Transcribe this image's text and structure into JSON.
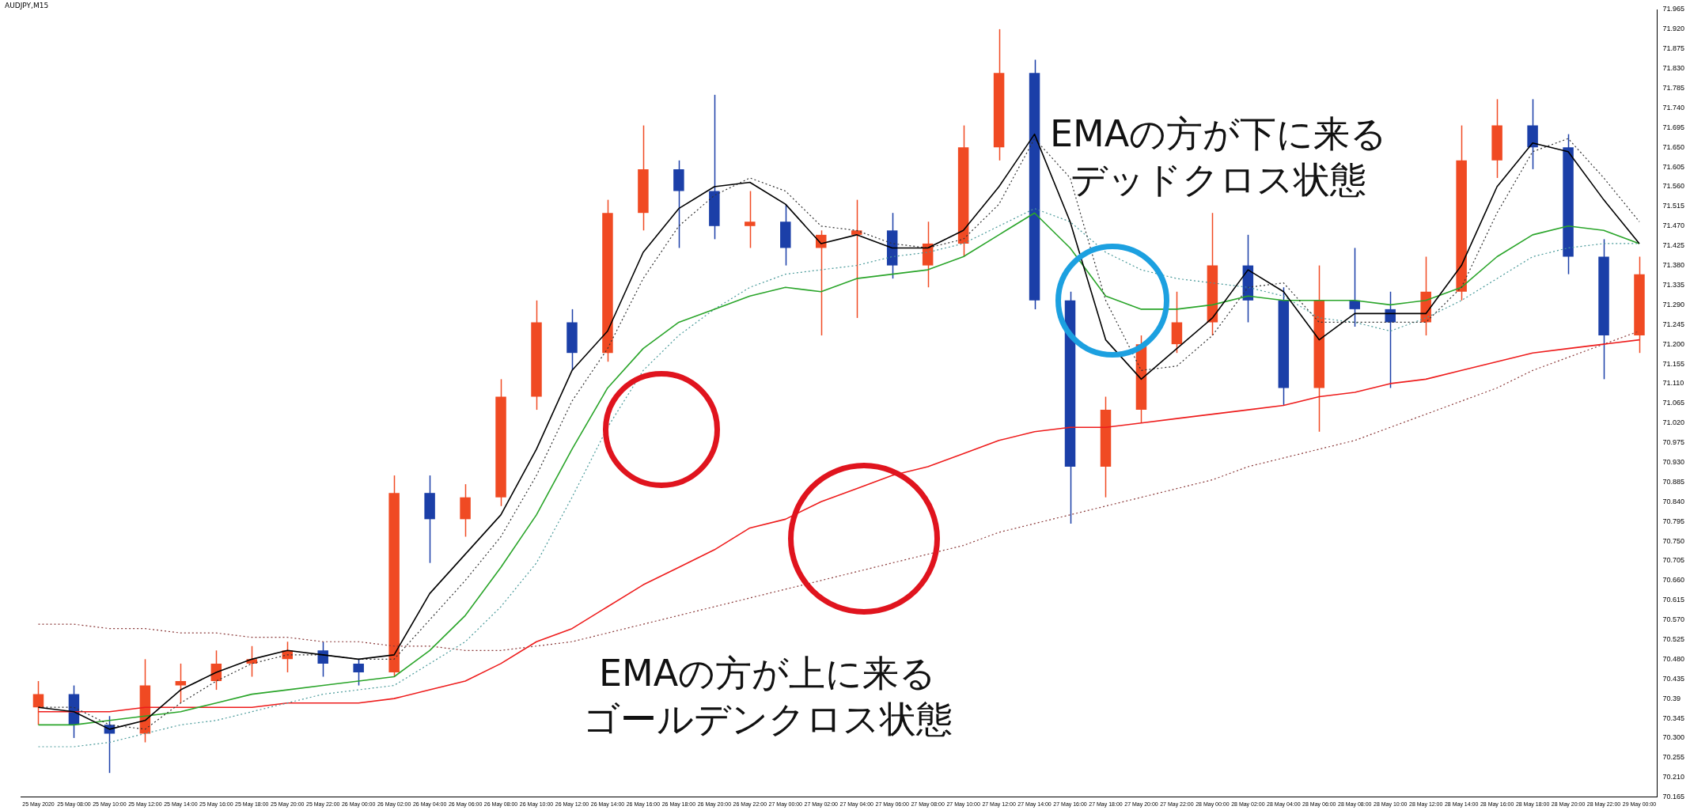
{
  "chart_data": {
    "type": "candlestick",
    "title": "AUDJPY,M15",
    "categories": [
      "25 May 2020",
      "25 May 08:00",
      "25 May 10:00",
      "25 May 12:00",
      "25 May 14:00",
      "25 May 16:00",
      "25 May 18:00",
      "25 May 20:00",
      "25 May 22:00",
      "26 May 00:00",
      "26 May 02:00",
      "26 May 04:00",
      "26 May 06:00",
      "26 May 08:00",
      "26 May 10:00",
      "26 May 12:00",
      "26 May 14:00",
      "26 May 16:00",
      "26 May 18:00",
      "26 May 20:00",
      "26 May 22:00",
      "27 May 00:00",
      "27 May 02:00",
      "27 May 04:00",
      "27 May 06:00",
      "27 May 08:00",
      "27 May 10:00",
      "27 May 12:00",
      "27 May 14:00",
      "27 May 16:00",
      "27 May 18:00",
      "27 May 20:00",
      "27 May 22:00",
      "28 May 00:00",
      "28 May 02:00",
      "28 May 04:00",
      "28 May 06:00",
      "28 May 08:00",
      "28 May 10:00",
      "28 May 12:00",
      "28 May 14:00",
      "28 May 16:00",
      "28 May 18:00",
      "28 May 20:00",
      "28 May 22:00",
      "29 May 00:00"
    ],
    "ohlc": [
      [
        70.37,
        70.43,
        70.33,
        70.4
      ],
      [
        70.4,
        70.42,
        70.3,
        70.33
      ],
      [
        70.33,
        70.35,
        70.22,
        70.31
      ],
      [
        70.31,
        70.48,
        70.29,
        70.42
      ],
      [
        70.42,
        70.47,
        70.38,
        70.43
      ],
      [
        70.43,
        70.5,
        70.41,
        70.47
      ],
      [
        70.47,
        70.51,
        70.44,
        70.48
      ],
      [
        70.48,
        70.52,
        70.45,
        70.5
      ],
      [
        70.5,
        70.52,
        70.44,
        70.47
      ],
      [
        70.47,
        70.48,
        70.42,
        70.45
      ],
      [
        70.45,
        70.9,
        70.44,
        70.86
      ],
      [
        70.86,
        70.9,
        70.7,
        70.8
      ],
      [
        70.8,
        70.88,
        70.76,
        70.85
      ],
      [
        70.85,
        71.12,
        70.83,
        71.08
      ],
      [
        71.08,
        71.3,
        71.05,
        71.25
      ],
      [
        71.25,
        71.28,
        71.14,
        71.18
      ],
      [
        71.18,
        71.53,
        71.16,
        71.5
      ],
      [
        71.5,
        71.7,
        71.46,
        71.6
      ],
      [
        71.6,
        71.62,
        71.42,
        71.55
      ],
      [
        71.55,
        71.77,
        71.44,
        71.47
      ],
      [
        71.47,
        71.55,
        71.42,
        71.48
      ],
      [
        71.48,
        71.52,
        71.38,
        71.42
      ],
      [
        71.42,
        71.46,
        71.22,
        71.45
      ],
      [
        71.45,
        71.53,
        71.26,
        71.46
      ],
      [
        71.46,
        71.5,
        71.35,
        71.38
      ],
      [
        71.38,
        71.48,
        71.33,
        71.43
      ],
      [
        71.43,
        71.7,
        71.4,
        71.65
      ],
      [
        71.65,
        71.92,
        71.62,
        71.82
      ],
      [
        71.82,
        71.85,
        71.28,
        71.3
      ],
      [
        71.3,
        71.32,
        70.79,
        70.92
      ],
      [
        70.92,
        71.08,
        70.85,
        71.05
      ],
      [
        71.05,
        71.22,
        71.02,
        71.2
      ],
      [
        71.2,
        71.32,
        71.18,
        71.25
      ],
      [
        71.25,
        71.5,
        71.22,
        71.38
      ],
      [
        71.38,
        71.45,
        71.25,
        71.3
      ],
      [
        71.3,
        71.33,
        71.06,
        71.1
      ],
      [
        71.1,
        71.38,
        71.0,
        71.3
      ],
      [
        71.3,
        71.42,
        71.24,
        71.28
      ],
      [
        71.28,
        71.32,
        71.1,
        71.25
      ],
      [
        71.25,
        71.4,
        71.22,
        71.32
      ],
      [
        71.32,
        71.7,
        71.3,
        71.62
      ],
      [
        71.62,
        71.76,
        71.58,
        71.7
      ],
      [
        71.7,
        71.76,
        71.6,
        71.65
      ],
      [
        71.65,
        71.68,
        71.36,
        71.4
      ],
      [
        71.4,
        71.44,
        71.12,
        71.22
      ],
      [
        71.22,
        71.4,
        71.18,
        71.36
      ]
    ],
    "colors": [
      "#f04a23",
      "#1b3fa8",
      "#1b3fa8",
      "#f04a23",
      "#f04a23",
      "#f04a23",
      "#f04a23",
      "#f04a23",
      "#1b3fa8",
      "#1b3fa8",
      "#f04a23",
      "#1b3fa8",
      "#f04a23",
      "#f04a23",
      "#f04a23",
      "#1b3fa8",
      "#f04a23",
      "#f04a23",
      "#1b3fa8",
      "#1b3fa8",
      "#f04a23",
      "#1b3fa8",
      "#f04a23",
      "#f04a23",
      "#1b3fa8",
      "#f04a23",
      "#f04a23",
      "#f04a23",
      "#1b3fa8",
      "#1b3fa8",
      "#f04a23",
      "#f04a23",
      "#f04a23",
      "#f04a23",
      "#1b3fa8",
      "#1b3fa8",
      "#f04a23",
      "#1b3fa8",
      "#1b3fa8",
      "#f04a23",
      "#f04a23",
      "#f04a23",
      "#1b3fa8",
      "#1b3fa8",
      "#1b3fa8",
      "#f04a23"
    ],
    "series": [
      {
        "type": "line",
        "color": "#000000",
        "line_style": "solid",
        "values": [
          70.37,
          70.36,
          70.32,
          70.34,
          70.41,
          70.45,
          70.48,
          70.5,
          70.49,
          70.48,
          70.49,
          70.63,
          70.72,
          70.81,
          70.96,
          71.14,
          71.23,
          71.41,
          71.51,
          71.56,
          71.57,
          71.52,
          71.43,
          71.45,
          71.42,
          71.42,
          71.46,
          71.56,
          71.68,
          71.48,
          71.21,
          71.12,
          71.19,
          71.26,
          71.37,
          71.32,
          71.21,
          71.27,
          71.27,
          71.27,
          71.38,
          71.56,
          71.66,
          71.64,
          71.53,
          71.43
        ]
      },
      {
        "type": "line",
        "color": "#333333",
        "line_style": "dotted",
        "values": [
          70.37,
          70.37,
          70.33,
          70.32,
          70.38,
          70.43,
          70.47,
          70.49,
          70.49,
          70.48,
          70.48,
          70.57,
          70.66,
          70.76,
          70.9,
          71.07,
          71.19,
          71.35,
          71.47,
          71.54,
          71.58,
          71.55,
          71.47,
          71.46,
          71.43,
          71.42,
          71.44,
          71.52,
          71.67,
          71.58,
          71.3,
          71.14,
          71.15,
          71.22,
          71.33,
          71.34,
          71.25,
          71.25,
          71.25,
          71.25,
          71.33,
          71.5,
          71.64,
          71.67,
          71.58,
          71.48
        ]
      },
      {
        "type": "line",
        "color": "#2aa52a",
        "line_style": "solid",
        "values": [
          70.33,
          70.33,
          70.34,
          70.35,
          70.36,
          70.38,
          70.4,
          70.41,
          70.42,
          70.43,
          70.44,
          70.5,
          70.58,
          70.69,
          70.81,
          70.96,
          71.1,
          71.19,
          71.25,
          71.28,
          71.31,
          71.33,
          71.32,
          71.35,
          71.36,
          71.37,
          71.4,
          71.45,
          71.5,
          71.42,
          71.31,
          71.28,
          71.28,
          71.29,
          71.31,
          71.3,
          71.3,
          71.3,
          71.29,
          71.3,
          71.33,
          71.4,
          71.45,
          71.47,
          71.46,
          71.43
        ]
      },
      {
        "type": "line",
        "color": "#4a9a9a",
        "line_style": "dotted",
        "values": [
          70.28,
          70.28,
          70.29,
          70.31,
          70.33,
          70.34,
          70.36,
          70.38,
          70.4,
          70.41,
          70.42,
          70.47,
          70.52,
          70.6,
          70.7,
          70.85,
          71.01,
          71.14,
          71.22,
          71.28,
          71.33,
          71.36,
          71.37,
          71.38,
          71.4,
          71.41,
          71.43,
          71.47,
          71.51,
          71.48,
          71.41,
          71.37,
          71.35,
          71.34,
          71.33,
          71.31,
          71.26,
          71.25,
          71.23,
          71.26,
          71.3,
          71.35,
          71.4,
          71.42,
          71.43,
          71.43
        ]
      },
      {
        "type": "line",
        "color": "#ee1c1c",
        "line_style": "solid",
        "values": [
          70.36,
          70.36,
          70.36,
          70.37,
          70.37,
          70.37,
          70.37,
          70.38,
          70.38,
          70.38,
          70.39,
          70.41,
          70.43,
          70.47,
          70.52,
          70.55,
          70.6,
          70.65,
          70.69,
          70.73,
          70.78,
          70.8,
          70.84,
          70.87,
          70.9,
          70.92,
          70.95,
          70.98,
          71.0,
          71.01,
          71.01,
          71.02,
          71.03,
          71.04,
          71.05,
          71.06,
          71.08,
          71.09,
          71.11,
          71.12,
          71.14,
          71.16,
          71.18,
          71.19,
          71.2,
          71.21
        ]
      },
      {
        "type": "line",
        "color": "#8b3a3a",
        "line_style": "dotted",
        "values": [
          70.56,
          70.56,
          70.55,
          70.55,
          70.54,
          70.54,
          70.53,
          70.53,
          70.52,
          70.52,
          70.51,
          70.51,
          70.5,
          70.5,
          70.51,
          70.52,
          70.54,
          70.56,
          70.58,
          70.6,
          70.62,
          70.64,
          70.66,
          70.68,
          70.7,
          70.72,
          70.74,
          70.77,
          70.79,
          70.81,
          70.83,
          70.85,
          70.87,
          70.89,
          70.92,
          70.94,
          70.96,
          70.98,
          71.01,
          71.04,
          71.07,
          71.1,
          71.14,
          71.17,
          71.2,
          71.23
        ]
      }
    ],
    "marker": "none",
    "ylim": [
      70.165,
      71.965
    ],
    "yticks": [
      70.165,
      {
        "value": 70.21,
        "label": "70.210"
      },
      70.255,
      {
        "value": 70.3,
        "label": "70.300"
      },
      70.345,
      70.39,
      70.435,
      {
        "value": 70.48,
        "label": "70.480"
      },
      70.525,
      {
        "value": 70.57,
        "label": "70.570"
      },
      70.615,
      {
        "value": 70.66,
        "label": "70.660"
      },
      70.705,
      {
        "value": 70.75,
        "label": "70.750"
      },
      70.795,
      {
        "value": 70.84,
        "label": "70.840"
      },
      70.885,
      {
        "value": 70.93,
        "label": "70.930"
      },
      70.975,
      {
        "value": 71.02,
        "label": "71.020"
      },
      71.065,
      {
        "value": 71.11,
        "label": "71.110"
      },
      71.155,
      {
        "value": 71.2,
        "label": "71.200"
      },
      71.245,
      {
        "value": 71.29,
        "label": "71.290"
      },
      71.335,
      {
        "value": 71.38,
        "label": "71.380"
      },
      71.425,
      {
        "value": 71.47,
        "label": "71.470"
      },
      71.515,
      {
        "value": 71.56,
        "label": "71.560"
      },
      71.605,
      {
        "value": 71.65,
        "label": "71.650"
      },
      71.695,
      {
        "value": 71.74,
        "label": "71.740"
      },
      71.785,
      {
        "value": 71.83,
        "label": "71.830"
      },
      71.875,
      {
        "value": 71.92,
        "label": "71.920"
      },
      71.965
    ],
    "annotations": [
      "EMAの方が下に来るデッドクロス状態",
      "EMAの方が上に来るゴールデンクロス状態"
    ]
  }
}
